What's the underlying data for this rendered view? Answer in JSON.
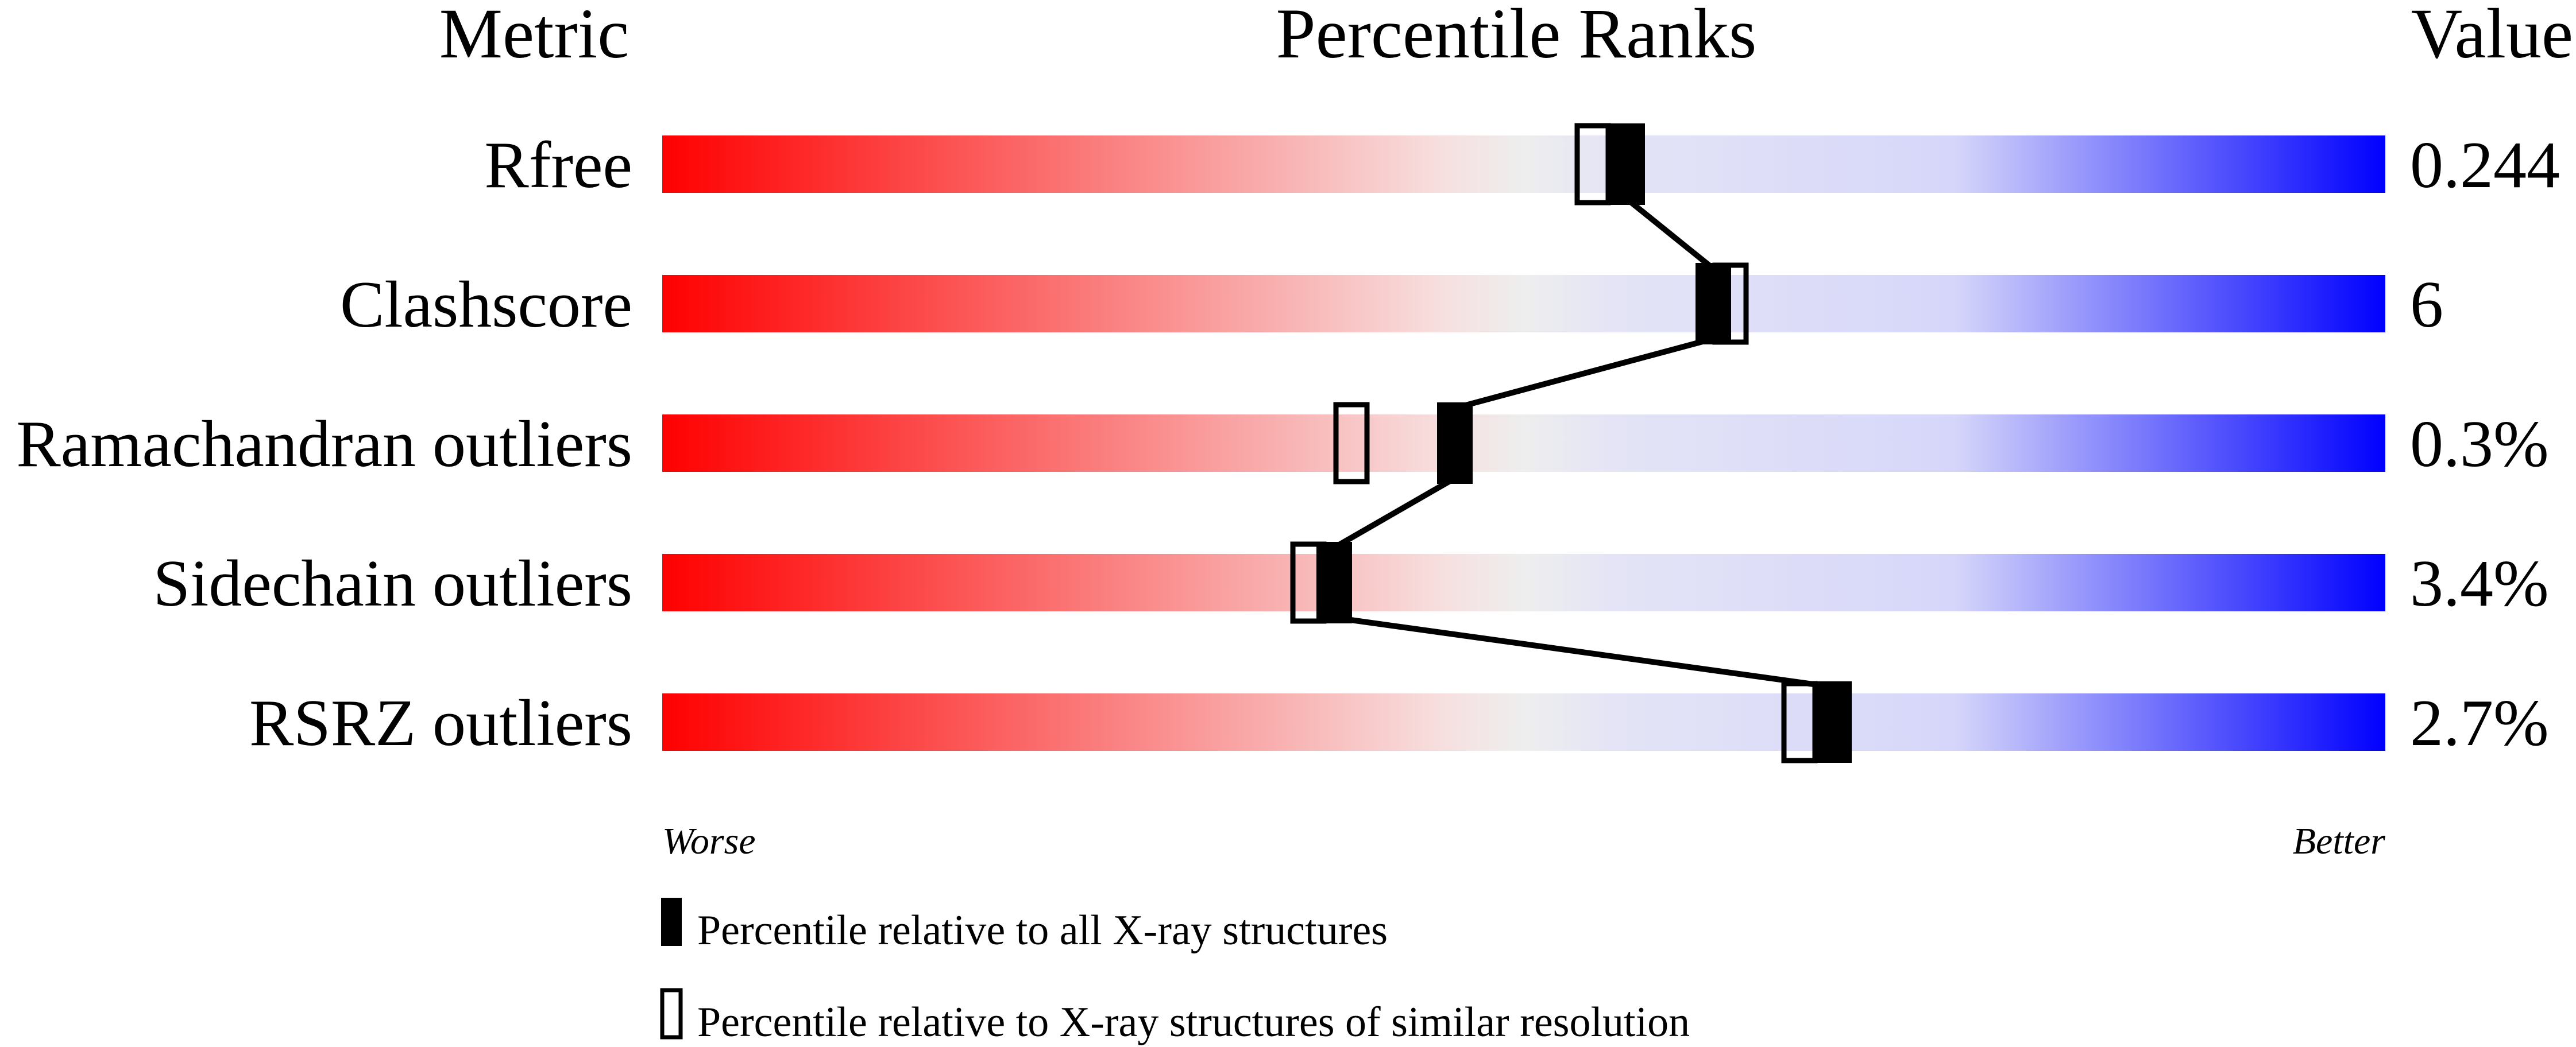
{
  "chart_data": {
    "type": "percentile-rank-bars",
    "headers": {
      "metric": "Metric",
      "ranks": "Percentile Ranks",
      "value": "Value"
    },
    "axis": {
      "worse": "Worse",
      "better": "Better",
      "range": [
        0,
        100
      ]
    },
    "gradient_colors": {
      "worse": "#ff0000",
      "middle": "#eeeeee",
      "better": "#0000ff"
    },
    "rows": [
      {
        "metric": "Rfree",
        "value": "0.244",
        "percentile_all": 56,
        "percentile_similar": 54
      },
      {
        "metric": "Clashscore",
        "value": "6",
        "percentile_all": 61,
        "percentile_similar": 62
      },
      {
        "metric": "Ramachandran outliers",
        "value": "0.3%",
        "percentile_all": 46,
        "percentile_similar": 40
      },
      {
        "metric": "Sidechain outliers",
        "value": "3.4%",
        "percentile_all": 39,
        "percentile_similar": 37.5
      },
      {
        "metric": "RSRZ outliers",
        "value": "2.7%",
        "percentile_all": 68,
        "percentile_similar": 66
      }
    ],
    "legend": [
      {
        "marker": "filled",
        "label": "Percentile relative to all X-ray structures"
      },
      {
        "marker": "hollow",
        "label": "Percentile relative to X-ray structures of similar resolution"
      }
    ]
  }
}
